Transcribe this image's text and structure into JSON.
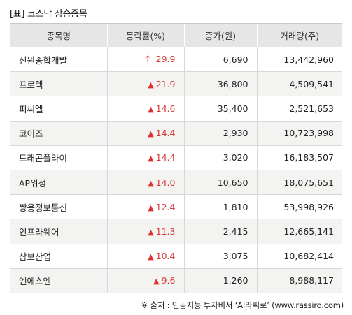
{
  "title": "[표] 코스닥 상승종목",
  "table": {
    "headers": [
      "종목명",
      "등락률(%)",
      "종가(원)",
      "거래량(주)"
    ],
    "rows": [
      {
        "name": "신원종합개발",
        "arrow": "↑",
        "change": "29.9",
        "close": "6,690",
        "volume": "13,442,960"
      },
      {
        "name": "프로텍",
        "arrow": "▲",
        "change": "21.9",
        "close": "36,800",
        "volume": "4,509,541"
      },
      {
        "name": "피씨엘",
        "arrow": "▲",
        "change": "14.6",
        "close": "35,400",
        "volume": "2,521,653"
      },
      {
        "name": "코이즈",
        "arrow": "▲",
        "change": "14.4",
        "close": "2,930",
        "volume": "10,723,998"
      },
      {
        "name": "드래곤플라이",
        "arrow": "▲",
        "change": "14.4",
        "close": "3,020",
        "volume": "16,183,507"
      },
      {
        "name": "AP위성",
        "arrow": "▲",
        "change": "14.0",
        "close": "10,650",
        "volume": "18,075,651"
      },
      {
        "name": "쌍용정보통신",
        "arrow": "▲",
        "change": "12.4",
        "close": "1,810",
        "volume": "53,998,926"
      },
      {
        "name": "인프라웨어",
        "arrow": "▲",
        "change": "11.3",
        "close": "2,415",
        "volume": "12,665,141"
      },
      {
        "name": "삼보산업",
        "arrow": "▲",
        "change": "10.4",
        "close": "3,075",
        "volume": "10,682,414"
      },
      {
        "name": "엔에스엔",
        "arrow": "▲",
        "change": "9.6",
        "close": "1,260",
        "volume": "8,988,117"
      }
    ]
  },
  "source": "※ 출처 : 인공지능 투자비서 ‘AI라씨로’ (www.rassiro.com)",
  "colors": {
    "up": "#d63a35",
    "header_bg": "#e6e6e6",
    "row_alt_bg": "#f3f3f1"
  }
}
